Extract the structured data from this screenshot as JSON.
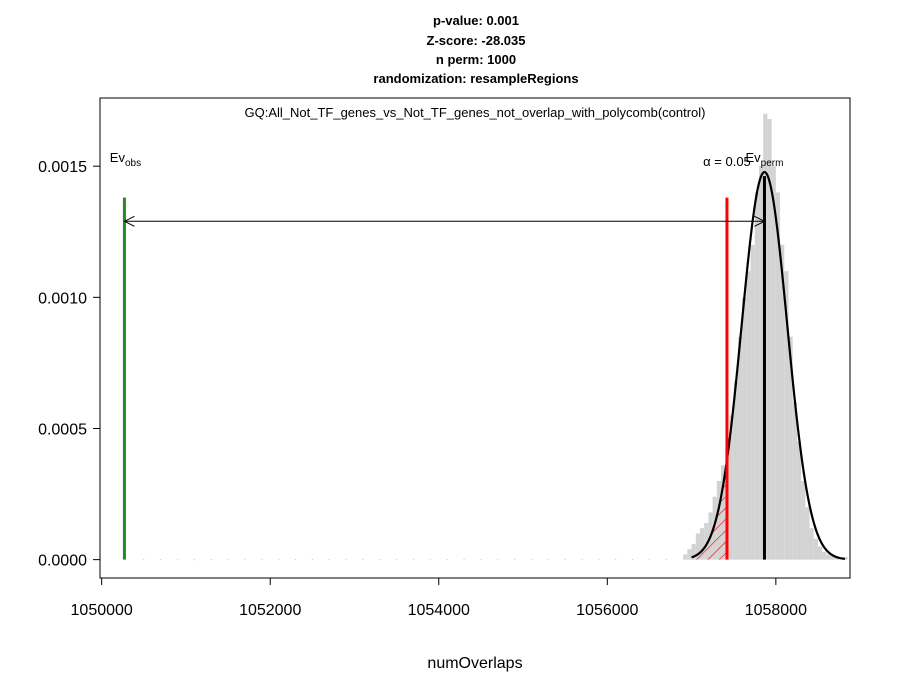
{
  "chart_data": {
    "type": "histogram",
    "title_lines": [
      "p-value:  0.001",
      "Z-score:  -28.035",
      "n perm:  1000",
      "randomization:  resampleRegions"
    ],
    "subtitle": "GQ:All_Not_TF_genes_vs_Not_TF_genes_not_overlap_with_polycomb(control)",
    "xlabel": "numOverlaps",
    "ylabel": "",
    "xlim": [
      1049980,
      1058880
    ],
    "ylim": [
      -7e-05,
      0.00176
    ],
    "x_ticks": [
      1050000,
      1052000,
      1054000,
      1056000,
      1058000
    ],
    "x_tick_labels": [
      "1050000",
      "1052000",
      "1054000",
      "1056000",
      "1058000"
    ],
    "y_ticks": [
      0.0,
      0.0005,
      0.001,
      0.0015
    ],
    "y_tick_labels": [
      "0.0000",
      "0.0005",
      "0.0010",
      "0.0015"
    ],
    "grid": false,
    "histogram": {
      "bin_width": 50,
      "bins_x_start": [
        1056900,
        1056950,
        1057000,
        1057050,
        1057100,
        1057150,
        1057200,
        1057250,
        1057300,
        1057350,
        1057400,
        1057450,
        1057500,
        1057550,
        1057600,
        1057650,
        1057700,
        1057750,
        1057800,
        1057850,
        1057900,
        1057950,
        1058000,
        1058050,
        1058100,
        1058150,
        1058200,
        1058250,
        1058300,
        1058350,
        1058400,
        1058450,
        1058500,
        1058550,
        1058600,
        1058650,
        1058700,
        1058750,
        1058800
      ],
      "density": [
        2e-05,
        4e-05,
        6e-05,
        0.0001,
        0.00012,
        0.00014,
        0.00018,
        0.00024,
        0.0003,
        0.00036,
        0.00042,
        0.00055,
        0.00068,
        0.00085,
        0.001,
        0.0011,
        0.0012,
        0.0014,
        0.0015,
        0.0017,
        0.00168,
        0.0015,
        0.0014,
        0.0012,
        0.0011,
        0.00085,
        0.0006,
        0.00045,
        0.0003,
        0.0002,
        0.00012,
        8e-05,
        5e-05,
        3e-05,
        2e-05,
        2e-05,
        1e-05,
        1e-05,
        1e-05
      ],
      "color": "#d3d3d3"
    },
    "normal_fit": {
      "mean": 1057865,
      "sd": 270,
      "x_range": [
        1057000,
        1058820
      ],
      "color": "#000000"
    },
    "observed": {
      "label_main": "Ev",
      "label_sub": "obs",
      "x": 1050270,
      "color": "#228b22"
    },
    "permuted_mean": {
      "label_main": "Ev",
      "label_sub": "perm",
      "x": 1057865,
      "color": "#000000"
    },
    "alpha": {
      "label": "α = 0.05",
      "x": 1057420,
      "color": "#ff0000"
    },
    "line_top_value": 0.00138,
    "arrow_y_value": 0.00129
  }
}
